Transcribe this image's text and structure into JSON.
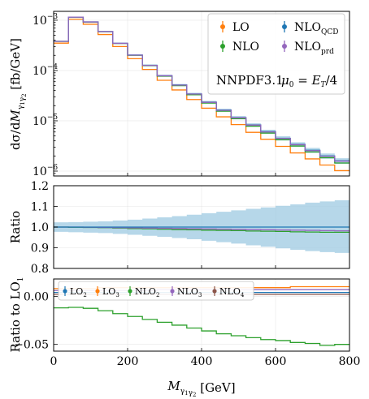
{
  "colors": {
    "LO": "#ff7f0e",
    "NLO": "#2ca02c",
    "NLO_QCD": "#1f77b4",
    "NLO_prd": "#9467bd",
    "band": "#9ecae1",
    "LO2": "#1f77b4",
    "LO3": "#ff7f0e",
    "NLO2": "#2ca02c",
    "NLO3": "#9467bd",
    "NLO4": "#8c564b"
  },
  "chart_data": [
    {
      "type": "line",
      "step": true,
      "log_y": true,
      "ylabel": "dσ/dM_{γ1γ2} [fb/GeV]",
      "ylim": [
        8e-07,
        0.0015
      ],
      "xlim": [
        0,
        800
      ],
      "grid": true,
      "legend_position": "top-right",
      "yticks": [
        {
          "label": "10",
          "exp": "−3"
        },
        {
          "label": "10",
          "exp": "−4"
        },
        {
          "label": "10",
          "exp": "−5"
        },
        {
          "label": "10",
          "exp": "−6"
        }
      ],
      "bin_edges": [
        0,
        40,
        80,
        120,
        160,
        200,
        240,
        280,
        320,
        360,
        400,
        440,
        480,
        520,
        560,
        600,
        640,
        680,
        720,
        760,
        800
      ],
      "series": [
        {
          "name": "LO",
          "color_key": "LO",
          "values": [
            0.00035,
            0.00105,
            0.00083,
            0.00052,
            0.0003,
            0.000172,
            0.000105,
            6.4e-05,
            4.1e-05,
            2.65e-05,
            1.78e-05,
            1.2e-05,
            8.4e-06,
            5.9e-06,
            4.3e-06,
            3.1e-06,
            2.3e-06,
            1.75e-06,
            1.32e-06,
            1.02e-06
          ]
        },
        {
          "name": "NLO",
          "color_key": "NLO",
          "values": [
            0.00038,
            0.00115,
            0.00092,
            0.00059,
            0.000345,
            0.0002,
            0.000125,
            7.7e-05,
            5e-05,
            3.3e-05,
            2.25e-05,
            1.55e-05,
            1.1e-05,
            7.8e-06,
            5.7e-06,
            4.2e-06,
            3.15e-06,
            2.4e-06,
            1.85e-06,
            1.45e-06
          ]
        },
        {
          "name": "NLO_QCD",
          "color_key": "NLO_QCD",
          "values": [
            0.00038,
            0.00115,
            0.000925,
            0.000595,
            0.000348,
            0.000203,
            0.000127,
            7.9e-05,
            5.15e-05,
            3.42e-05,
            2.35e-05,
            1.63e-05,
            1.16e-05,
            8.3e-06,
            6.1e-06,
            4.5e-06,
            3.4e-06,
            2.6e-06,
            2e-06,
            1.6e-06
          ]
        },
        {
          "name": "NLO_prd",
          "color_key": "NLO_prd",
          "values": [
            0.00038,
            0.00115,
            0.000924,
            0.000594,
            0.000347,
            0.000202,
            0.0001265,
            7.85e-05,
            5.12e-05,
            3.4e-05,
            2.33e-05,
            1.61e-05,
            1.15e-05,
            8.2e-06,
            6e-06,
            4.45e-06,
            3.35e-06,
            2.55e-06,
            1.98e-06,
            1.58e-06
          ]
        }
      ],
      "band_relative": [
        0.022,
        0.022,
        0.023,
        0.025,
        0.028,
        0.032,
        0.037,
        0.042,
        0.048,
        0.055,
        0.062,
        0.068,
        0.075,
        0.082,
        0.09,
        0.097,
        0.105,
        0.113,
        0.12,
        0.127
      ],
      "legend": [
        {
          "main": "LO",
          "sub": "",
          "color_key": "LO"
        },
        {
          "main": "NLO",
          "sub": "QCD",
          "color_key": "NLO_QCD"
        },
        {
          "main": "NLO",
          "sub": "",
          "color_key": "NLO"
        },
        {
          "main": "NLO",
          "sub": "prd",
          "color_key": "NLO_prd"
        }
      ],
      "annotation": {
        "pdf": "NNPDF3.1",
        "scale": "μ0 = ET/4"
      }
    },
    {
      "type": "line",
      "step": true,
      "ylabel": "Ratio",
      "ylim": [
        0.8,
        1.2
      ],
      "yticks": [
        "1.2",
        "1.1",
        "1.0",
        "0.9",
        "0.8"
      ],
      "grid": true,
      "bin_edges": [
        0,
        40,
        80,
        120,
        160,
        200,
        240,
        280,
        320,
        360,
        400,
        440,
        480,
        520,
        560,
        600,
        640,
        680,
        720,
        760,
        800
      ],
      "series": [
        {
          "name": "NLO",
          "color_key": "NLO",
          "values": [
            1.0,
            0.999,
            0.998,
            0.997,
            0.995,
            0.993,
            0.992,
            0.99,
            0.988,
            0.987,
            0.985,
            0.984,
            0.983,
            0.981,
            0.98,
            0.979,
            0.977,
            0.976,
            0.975,
            0.975
          ]
        },
        {
          "name": "NLO_prd",
          "color_key": "NLO_prd",
          "values": [
            1.0,
            1.0,
            0.999,
            0.998,
            0.997,
            0.996,
            0.995,
            0.994,
            0.993,
            0.992,
            0.991,
            0.99,
            0.989,
            0.988,
            0.987,
            0.986,
            0.985,
            0.984,
            0.983,
            0.982
          ]
        },
        {
          "name": "NLO_QCD",
          "color_key": "NLO_QCD",
          "values": [
            1.0,
            1.0,
            1.0,
            1.0,
            1.0,
            1.0,
            1.0,
            1.0,
            1.0,
            1.0,
            1.0,
            1.0,
            1.0,
            1.0,
            1.0,
            1.0,
            1.0,
            1.0,
            1.0,
            1.0
          ]
        }
      ],
      "band_lower": [
        0.977,
        0.975,
        0.973,
        0.971,
        0.967,
        0.963,
        0.958,
        0.953,
        0.947,
        0.941,
        0.934,
        0.927,
        0.92,
        0.912,
        0.905,
        0.897,
        0.89,
        0.884,
        0.879,
        0.875
      ],
      "band_upper": [
        1.023,
        1.024,
        1.026,
        1.028,
        1.032,
        1.036,
        1.041,
        1.047,
        1.053,
        1.06,
        1.067,
        1.074,
        1.081,
        1.088,
        1.095,
        1.103,
        1.11,
        1.118,
        1.124,
        1.13
      ]
    },
    {
      "type": "line",
      "step": true,
      "ylabel": "Ratio to LO1",
      "ylabel_main": "Ratio to LO",
      "ylabel_sub": "1",
      "ylim": [
        -0.057,
        0.018
      ],
      "xlim": [
        0,
        800
      ],
      "xlabel": "M_{γ1γ2} [GeV]",
      "xticks": [
        "0",
        "200",
        "400",
        "600",
        "800"
      ],
      "yticks": [
        {
          "value": 0.0,
          "label": "0.00"
        },
        {
          "value": -0.05,
          "label": "−0.05"
        }
      ],
      "grid": true,
      "legend_position": "top",
      "bin_edges": [
        0,
        40,
        80,
        120,
        160,
        200,
        240,
        280,
        320,
        360,
        400,
        440,
        480,
        520,
        560,
        600,
        640,
        680,
        720,
        760,
        800
      ],
      "series": [
        {
          "name": "LO2",
          "color_key": "LO2",
          "values": [
            0.004,
            0.004,
            0.004,
            0.004,
            0.004,
            0.004,
            0.004,
            0.004,
            0.004,
            0.004,
            0.004,
            0.004,
            0.004,
            0.004,
            0.004,
            0.004,
            0.004,
            0.004,
            0.004,
            0.004
          ]
        },
        {
          "name": "LO3",
          "color_key": "LO3",
          "values": [
            0.008,
            0.008,
            0.008,
            0.009,
            0.009,
            0.009,
            0.009,
            0.009,
            0.009,
            0.009,
            0.009,
            0.009,
            0.009,
            0.009,
            0.009,
            0.009,
            0.01,
            0.01,
            0.01,
            0.01
          ]
        },
        {
          "name": "NLO2",
          "color_key": "NLO2",
          "values": [
            -0.012,
            -0.0115,
            -0.0125,
            -0.015,
            -0.018,
            -0.021,
            -0.024,
            -0.027,
            -0.03,
            -0.033,
            -0.036,
            -0.039,
            -0.041,
            -0.043,
            -0.045,
            -0.046,
            -0.048,
            -0.049,
            -0.051,
            -0.05
          ]
        },
        {
          "name": "NLO3",
          "color_key": "NLO3",
          "values": [
            0.006,
            0.006,
            0.006,
            0.006,
            0.006,
            0.006,
            0.006,
            0.007,
            0.007,
            0.007,
            0.007,
            0.007,
            0.007,
            0.007,
            0.007,
            0.007,
            0.007,
            0.007,
            0.007,
            0.007
          ]
        },
        {
          "name": "NLO4",
          "color_key": "NLO4",
          "values": [
            0.002,
            0.002,
            0.002,
            0.002,
            0.002,
            0.002,
            0.002,
            0.002,
            0.002,
            0.002,
            0.002,
            0.002,
            0.002,
            0.002,
            0.002,
            0.002,
            0.002,
            0.002,
            0.002,
            0.002
          ]
        }
      ],
      "legend": [
        {
          "main": "LO",
          "sub": "2",
          "color_key": "LO2"
        },
        {
          "main": "LO",
          "sub": "3",
          "color_key": "LO3"
        },
        {
          "main": "NLO",
          "sub": "2",
          "color_key": "NLO2"
        },
        {
          "main": "NLO",
          "sub": "3",
          "color_key": "NLO3"
        },
        {
          "main": "NLO",
          "sub": "4",
          "color_key": "NLO4"
        }
      ]
    }
  ]
}
